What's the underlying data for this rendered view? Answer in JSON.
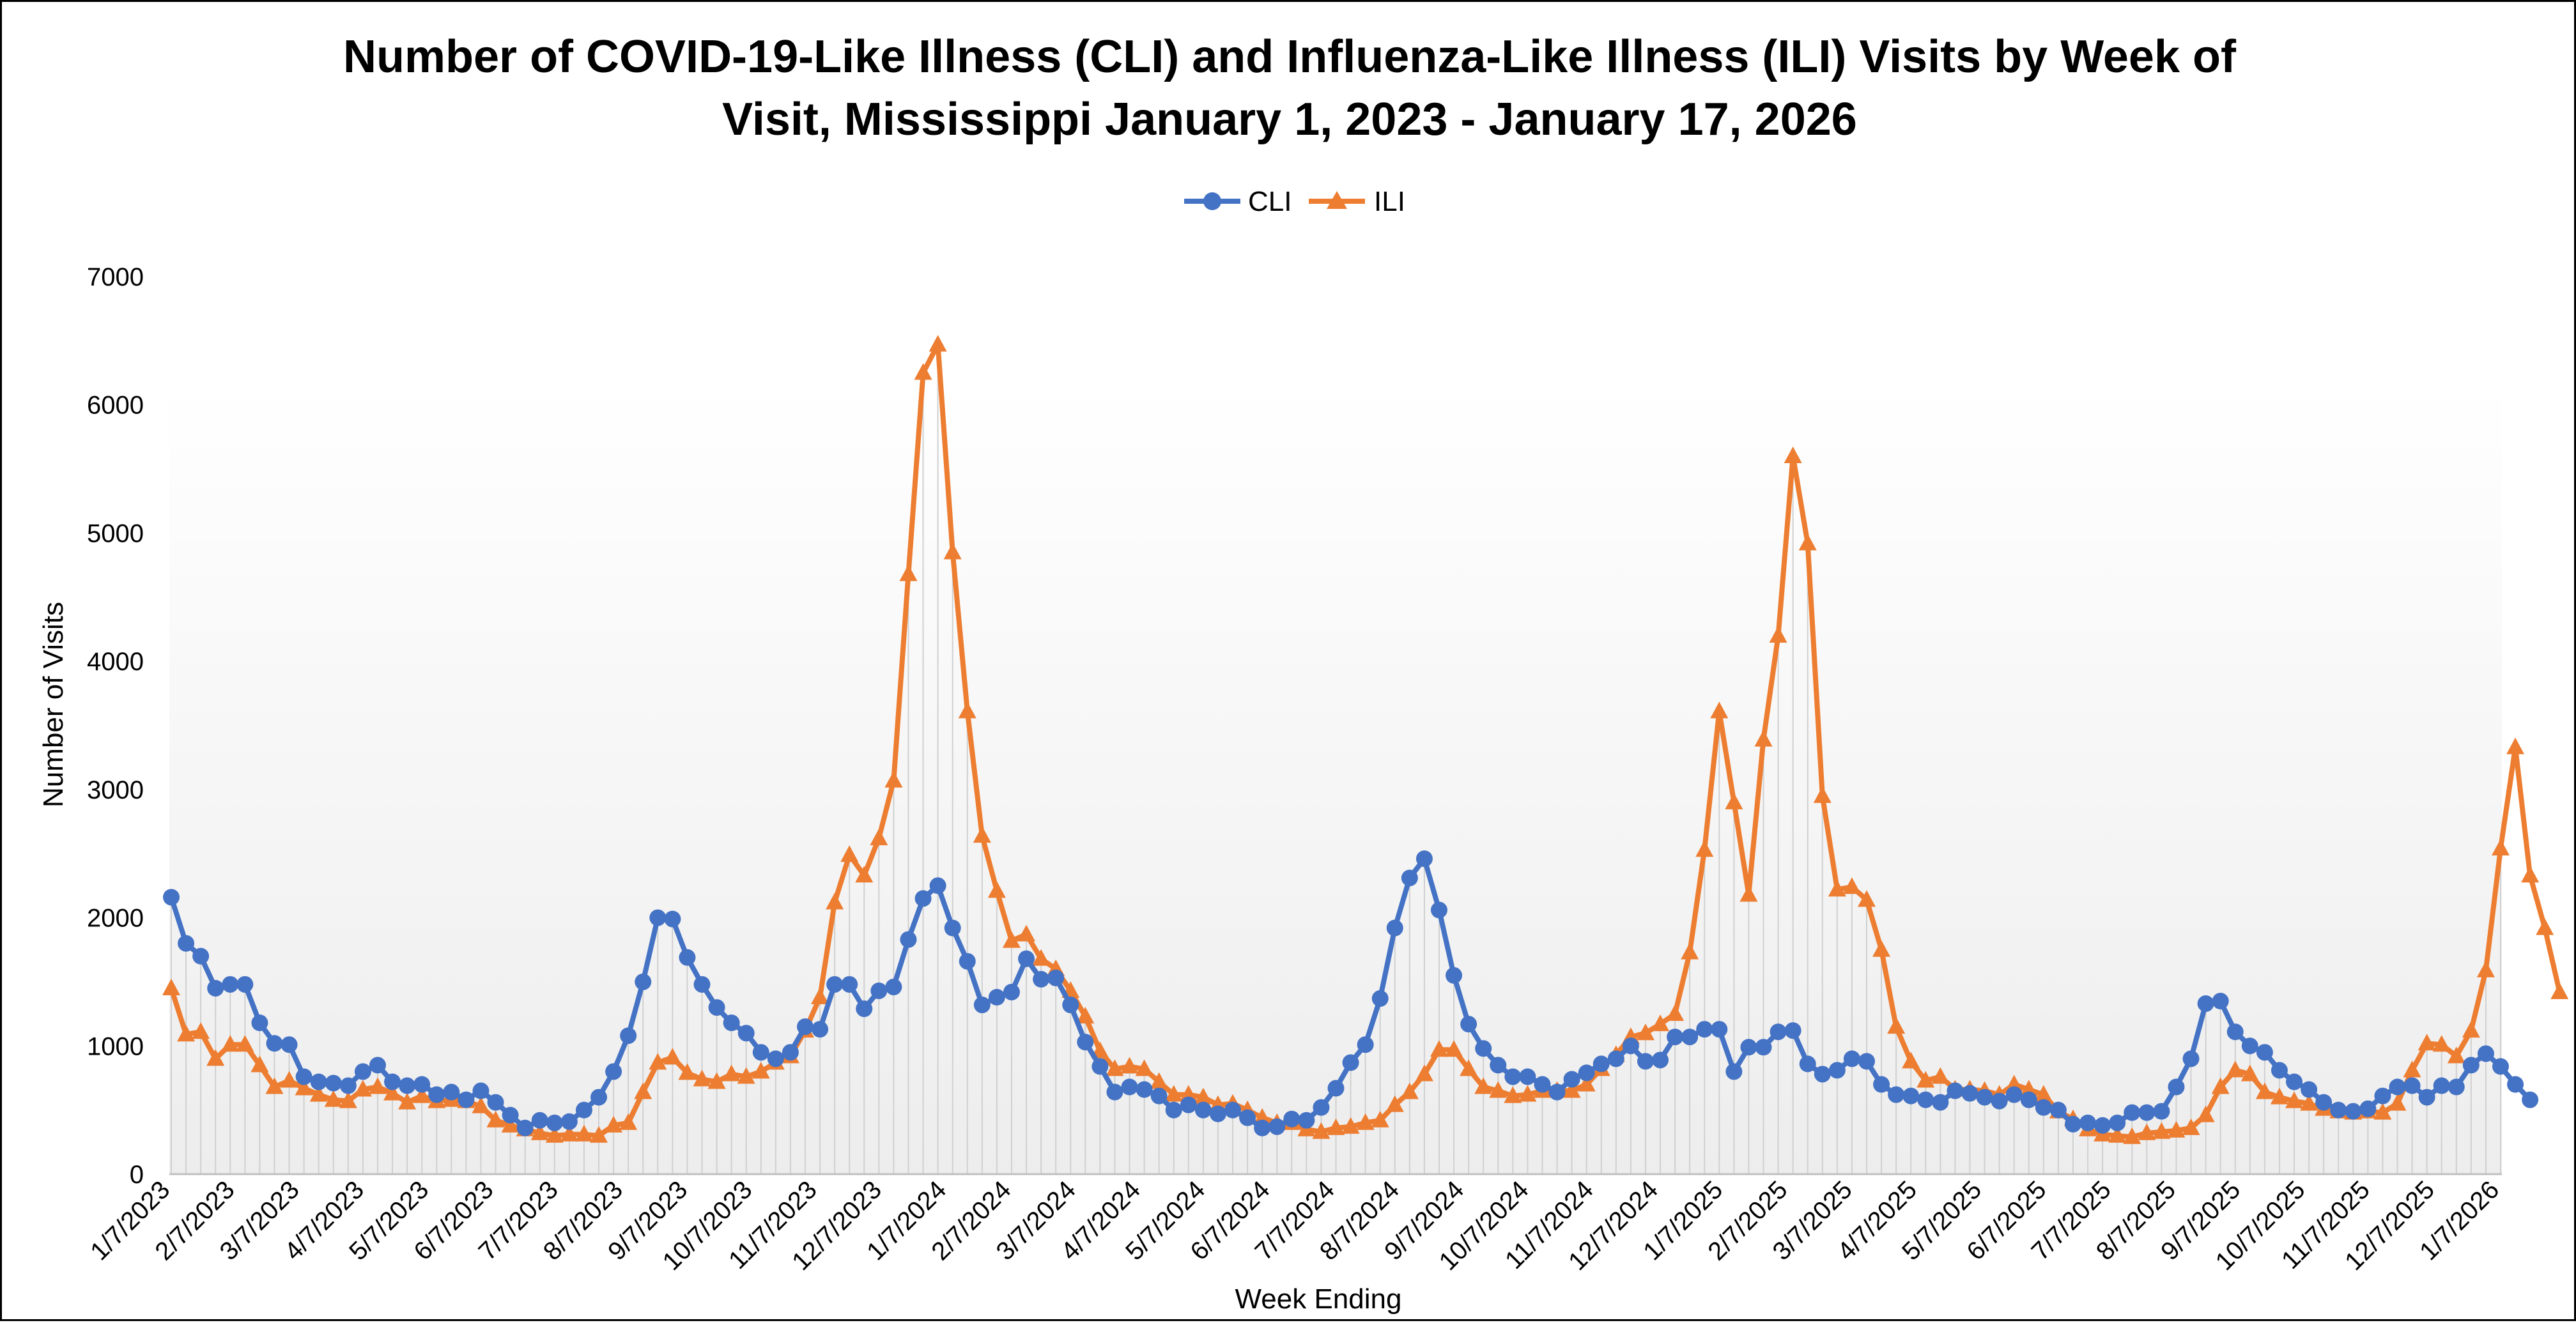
{
  "colors": {
    "cli": "#4472C4",
    "ili": "#ED7D31",
    "text": "#000000",
    "axis": "#BFBFBF",
    "dropline": "#D0D0D0",
    "background_gradient_top": "#FFFFFF",
    "background_gradient_bottom": "#EDEDED"
  },
  "chart_data": {
    "type": "line",
    "title_line1": "Number of COVID-19-Like Illness (CLI) and Influenza-Like Illness (ILI) Visits by Week of",
    "title_line2": "Visit, Mississippi January 1, 2023 - January 17, 2026",
    "xlabel": "Week Ending",
    "ylabel": "Number of Visits",
    "ylim": [
      0,
      7000
    ],
    "yticks": [
      "0",
      "1000",
      "2000",
      "3000",
      "4000",
      "5000",
      "6000",
      "7000"
    ],
    "x_tick_labels": [
      "1/7/2023",
      "2/7/2023",
      "3/7/2023",
      "4/7/2023",
      "5/7/2023",
      "6/7/2023",
      "7/7/2023",
      "8/7/2023",
      "9/7/2023",
      "10/7/2023",
      "11/7/2023",
      "12/7/2023",
      "1/7/2024",
      "2/7/2024",
      "3/7/2024",
      "4/7/2024",
      "5/7/2024",
      "6/7/2024",
      "7/7/2024",
      "8/7/2024",
      "9/7/2024",
      "10/7/2024",
      "11/7/2024",
      "12/7/2024",
      "1/7/2025",
      "2/7/2025",
      "3/7/2025",
      "4/7/2025",
      "5/7/2025",
      "6/7/2025",
      "7/7/2025",
      "8/7/2025",
      "9/7/2025",
      "10/7/2025",
      "11/7/2025",
      "12/7/2025",
      "1/7/2026"
    ],
    "grid": false,
    "legend_position": "top-center",
    "point_count": 159,
    "series": [
      {
        "name": "CLI",
        "marker": "circle",
        "values": [
          2160,
          1800,
          1700,
          1450,
          1480,
          1480,
          1180,
          1020,
          1010,
          760,
          720,
          710,
          690,
          800,
          850,
          720,
          690,
          700,
          620,
          640,
          580,
          650,
          560,
          460,
          360,
          420,
          400,
          410,
          500,
          600,
          800,
          1080,
          1500,
          2000,
          1990,
          1690,
          1480,
          1300,
          1180,
          1100,
          950,
          900,
          950,
          1150,
          1130,
          1480,
          1480,
          1290,
          1430,
          1460,
          1830,
          2150,
          2250,
          1920,
          1660,
          1320,
          1380,
          1420,
          1680,
          1520,
          1530,
          1320,
          1030,
          840,
          640,
          680,
          660,
          610,
          500,
          540,
          500,
          470,
          500,
          440,
          360,
          370,
          430,
          420,
          520,
          670,
          870,
          1010,
          1370,
          1920,
          2310,
          2460,
          2060,
          1550,
          1170,
          980,
          850,
          760,
          760,
          700,
          640,
          740,
          790,
          860,
          900,
          1000,
          880,
          890,
          1070,
          1070,
          1130,
          1130,
          800,
          990,
          990,
          1110,
          1120,
          860,
          780,
          810,
          900,
          880,
          700,
          620,
          610,
          580,
          560,
          650,
          630,
          600,
          570,
          620,
          580,
          520,
          500,
          390,
          400,
          380,
          400,
          480,
          480,
          490,
          680,
          900,
          1330,
          1350,
          1110,
          1000,
          950,
          810,
          720,
          660,
          560,
          500,
          490,
          510,
          610,
          680,
          690,
          600,
          690,
          680,
          850,
          940,
          840,
          700,
          580
        ]
      },
      {
        "name": "ILI",
        "marker": "triangle",
        "values": [
          1450,
          1090,
          1110,
          900,
          1010,
          1010,
          850,
          680,
          730,
          670,
          620,
          580,
          570,
          660,
          680,
          630,
          560,
          610,
          570,
          580,
          570,
          530,
          420,
          380,
          350,
          320,
          300,
          310,
          310,
          300,
          380,
          400,
          640,
          870,
          910,
          790,
          740,
          720,
          780,
          760,
          800,
          870,
          920,
          1120,
          1380,
          2120,
          2490,
          2330,
          2620,
          3070,
          4680,
          6250,
          6470,
          4850,
          3610,
          2640,
          2210,
          1820,
          1870,
          1680,
          1600,
          1430,
          1230,
          960,
          820,
          840,
          820,
          720,
          620,
          620,
          600,
          540,
          550,
          500,
          440,
          400,
          400,
          350,
          330,
          360,
          370,
          400,
          420,
          540,
          640,
          780,
          970,
          970,
          820,
          680,
          650,
          610,
          620,
          650,
          650,
          650,
          700,
          820,
          930,
          1070,
          1100,
          1170,
          1250,
          1730,
          2530,
          3610,
          2900,
          2180,
          3390,
          4200,
          5600,
          4920,
          2950,
          2220,
          2240,
          2140,
          1750,
          1150,
          880,
          730,
          760,
          660,
          660,
          650,
          620,
          700,
          660,
          620,
          490,
          430,
          350,
          310,
          300,
          290,
          320,
          330,
          340,
          360,
          460,
          680,
          810,
          780,
          640,
          600,
          570,
          550,
          510,
          490,
          480,
          490,
          480,
          550,
          810,
          1020,
          1010,
          920,
          1120,
          1590,
          2540,
          3330,
          2330,
          1920,
          1420
        ]
      }
    ]
  }
}
